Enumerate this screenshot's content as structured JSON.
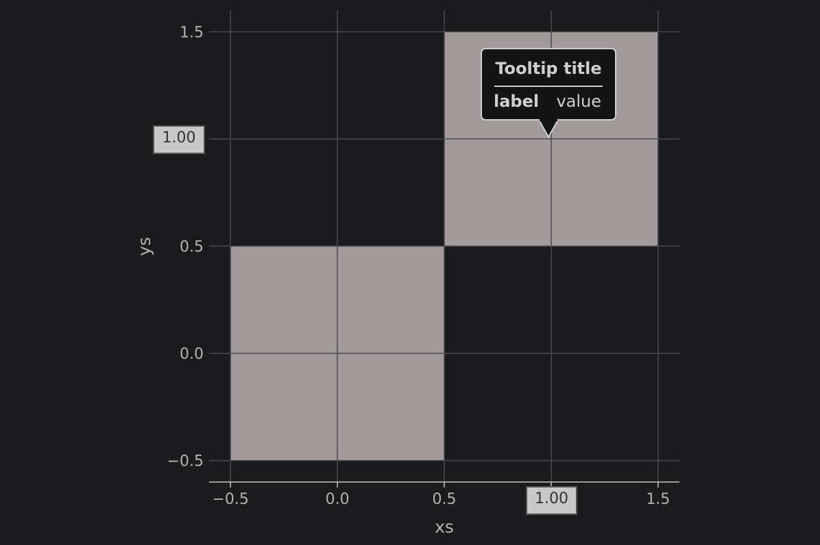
{
  "chart_data": {
    "type": "heatmap",
    "xlabel": "xs",
    "ylabel": "ys",
    "xlim": [
      -0.6,
      1.6
    ],
    "ylim": [
      -0.6,
      1.6
    ],
    "xticks": [
      -0.5,
      0.0,
      0.5,
      1.0,
      1.5
    ],
    "yticks": [
      -0.5,
      0.0,
      0.5,
      1.0,
      1.5
    ],
    "xtick_labels": [
      "−0.5",
      "0.0",
      "0.5",
      "1.00",
      "1.5"
    ],
    "ytick_labels": [
      "−0.5",
      "0.0",
      "0.5",
      "1.00",
      "1.5"
    ],
    "cells": [
      {
        "x": 0,
        "y": 0,
        "color": "#a39b9b"
      },
      {
        "x": 1,
        "y": 1,
        "color": "#a39b9b"
      }
    ],
    "grid": true
  },
  "crosshair": {
    "x_value": "1.00",
    "y_value": "1.00"
  },
  "tooltip": {
    "title": "Tooltip title",
    "label": "label",
    "value": "value"
  },
  "colors": {
    "background": "#1b1b1d",
    "cell": "#a39b9b",
    "grid": "#4a4a4c",
    "text": "#b4b4b4"
  }
}
